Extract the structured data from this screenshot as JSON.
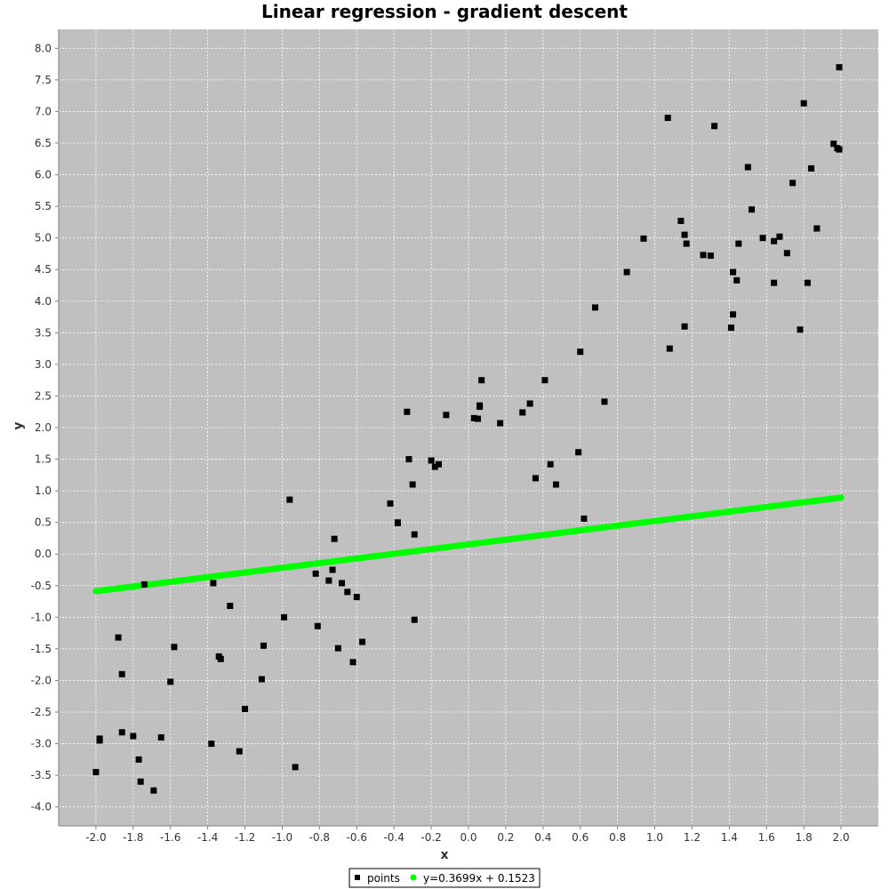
{
  "chart_data": {
    "type": "scatter",
    "title": "Linear regression - gradient descent",
    "xlabel": "x",
    "ylabel": "y",
    "xlim": [
      -2.2,
      2.2
    ],
    "ylim": [
      -4.3,
      8.3
    ],
    "x_ticks": [
      -2.0,
      -1.8,
      -1.6,
      -1.4,
      -1.2,
      -1.0,
      -0.8,
      -0.6,
      -0.4,
      -0.2,
      0.0,
      0.2,
      0.4,
      0.6,
      0.8,
      1.0,
      1.2,
      1.4,
      1.6,
      1.8,
      2.0
    ],
    "y_ticks": [
      -4.0,
      -3.5,
      -3.0,
      -2.5,
      -2.0,
      -1.5,
      -1.0,
      -0.5,
      0.0,
      0.5,
      1.0,
      1.5,
      2.0,
      2.5,
      3.0,
      3.5,
      4.0,
      4.5,
      5.0,
      5.5,
      6.0,
      6.5,
      7.0,
      7.5,
      8.0
    ],
    "grid": true,
    "legend_position": "bottom-center",
    "plot_background": "#c0c0c0",
    "series": [
      {
        "name": "points",
        "type": "scatter",
        "marker": "square",
        "color": "#000000",
        "points": [
          [
            -2.0,
            -3.45
          ],
          [
            -1.98,
            -2.95
          ],
          [
            -1.98,
            -2.92
          ],
          [
            -1.88,
            -1.32
          ],
          [
            -1.86,
            -1.9
          ],
          [
            -1.86,
            -2.82
          ],
          [
            -1.8,
            -2.88
          ],
          [
            -1.77,
            -3.25
          ],
          [
            -1.76,
            -3.6
          ],
          [
            -1.74,
            -0.48
          ],
          [
            -1.69,
            -3.74
          ],
          [
            -1.65,
            -2.9
          ],
          [
            -1.6,
            -2.02
          ],
          [
            -1.58,
            -1.47
          ],
          [
            -1.38,
            -3.0
          ],
          [
            -1.37,
            -0.46
          ],
          [
            -1.34,
            -1.62
          ],
          [
            -1.33,
            -1.66
          ],
          [
            -1.28,
            -0.82
          ],
          [
            -1.23,
            -3.12
          ],
          [
            -1.2,
            -2.45
          ],
          [
            -1.11,
            -1.98
          ],
          [
            -1.1,
            -1.45
          ],
          [
            -0.99,
            -1.0
          ],
          [
            -0.96,
            0.86
          ],
          [
            -0.93,
            -3.37
          ],
          [
            -0.82,
            -0.31
          ],
          [
            -0.81,
            -1.14
          ],
          [
            -0.75,
            -0.42
          ],
          [
            -0.73,
            -0.25
          ],
          [
            -0.72,
            0.24
          ],
          [
            -0.7,
            -1.49
          ],
          [
            -0.68,
            -0.46
          ],
          [
            -0.65,
            -0.6
          ],
          [
            -0.62,
            -1.71
          ],
          [
            -0.6,
            -0.68
          ],
          [
            -0.57,
            -1.39
          ],
          [
            -0.42,
            0.8
          ],
          [
            -0.38,
            0.49
          ],
          [
            -0.38,
            0.5
          ],
          [
            -0.33,
            2.25
          ],
          [
            -0.32,
            1.5
          ],
          [
            -0.3,
            1.1
          ],
          [
            -0.29,
            0.31
          ],
          [
            -0.29,
            -1.04
          ],
          [
            -0.2,
            1.48
          ],
          [
            -0.18,
            1.38
          ],
          [
            -0.16,
            1.42
          ],
          [
            -0.12,
            2.2
          ],
          [
            0.03,
            2.15
          ],
          [
            0.05,
            2.14
          ],
          [
            0.06,
            2.33
          ],
          [
            0.06,
            2.35
          ],
          [
            0.07,
            2.75
          ],
          [
            0.17,
            2.07
          ],
          [
            0.29,
            2.24
          ],
          [
            0.33,
            2.38
          ],
          [
            0.36,
            1.2
          ],
          [
            0.41,
            2.75
          ],
          [
            0.44,
            1.42
          ],
          [
            0.47,
            1.1
          ],
          [
            0.59,
            1.61
          ],
          [
            0.6,
            3.2
          ],
          [
            0.62,
            0.56
          ],
          [
            0.68,
            3.9
          ],
          [
            0.73,
            2.41
          ],
          [
            0.85,
            4.46
          ],
          [
            0.94,
            4.99
          ],
          [
            1.07,
            6.9
          ],
          [
            1.08,
            3.25
          ],
          [
            1.14,
            5.27
          ],
          [
            1.16,
            3.6
          ],
          [
            1.16,
            5.05
          ],
          [
            1.17,
            4.91
          ],
          [
            1.26,
            4.73
          ],
          [
            1.3,
            4.72
          ],
          [
            1.32,
            6.77
          ],
          [
            1.41,
            3.58
          ],
          [
            1.42,
            4.46
          ],
          [
            1.42,
            3.79
          ],
          [
            1.44,
            4.33
          ],
          [
            1.45,
            4.91
          ],
          [
            1.5,
            6.12
          ],
          [
            1.52,
            5.45
          ],
          [
            1.58,
            5.0
          ],
          [
            1.64,
            4.95
          ],
          [
            1.64,
            4.29
          ],
          [
            1.67,
            5.02
          ],
          [
            1.71,
            4.76
          ],
          [
            1.74,
            5.87
          ],
          [
            1.78,
            3.55
          ],
          [
            1.8,
            7.13
          ],
          [
            1.82,
            4.29
          ],
          [
            1.84,
            6.1
          ],
          [
            1.87,
            5.15
          ],
          [
            1.96,
            6.49
          ],
          [
            1.98,
            6.42
          ],
          [
            1.99,
            6.4
          ],
          [
            1.99,
            7.7
          ]
        ]
      },
      {
        "name": "y=0.3699x + 0.1523",
        "type": "line",
        "color": "#00ff00",
        "slope": 0.3699,
        "intercept": 0.1523,
        "x_range": [
          -2.0,
          2.0
        ]
      }
    ]
  }
}
